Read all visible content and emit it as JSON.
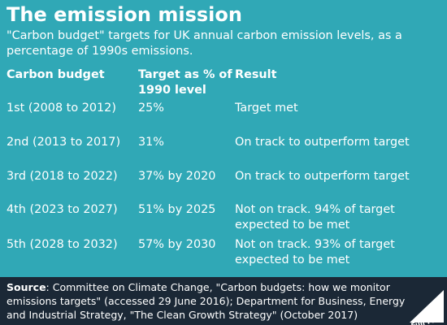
{
  "header": {
    "title": "The emission mission",
    "subtitle": "\"Carbon budget\" targets for UK annual carbon emission levels, as a percentage of 1990s emissions."
  },
  "chart_data": {
    "type": "table",
    "columns": [
      "Carbon budget",
      "Target as % of 1990 level",
      "Result"
    ],
    "rows": [
      {
        "budget": "1st (2008 to 2012)",
        "target": "25%",
        "result": "Target met"
      },
      {
        "budget": "2nd (2013 to 2017)",
        "target": "31%",
        "result": "On track to outperform target"
      },
      {
        "budget": "3rd (2018 to 2022)",
        "target": "37% by 2020",
        "result": "On track to outperform target"
      },
      {
        "budget": "4th (2023 to 2027)",
        "target": "51% by 2025",
        "result": "Not on track. 94% of target expected to be met"
      },
      {
        "budget": "5th (2028 to 2032)",
        "target": "57% by 2030",
        "result": "Not on track. 93% of target expected to be met"
      }
    ]
  },
  "footer": {
    "source_label": "Source",
    "source_text": ": Committee on Climate Change, \"Carbon budgets: how we monitor emissions targets\" (accessed 29 June 2016); Department for Business, Energy and Industrial Strategy, \"The Clean Growth Strategy\" (October 2017)",
    "logo_text": "Full Fact"
  },
  "colors": {
    "background": "#30a8b6",
    "footer": "#1b2836",
    "text": "#ffffff"
  }
}
